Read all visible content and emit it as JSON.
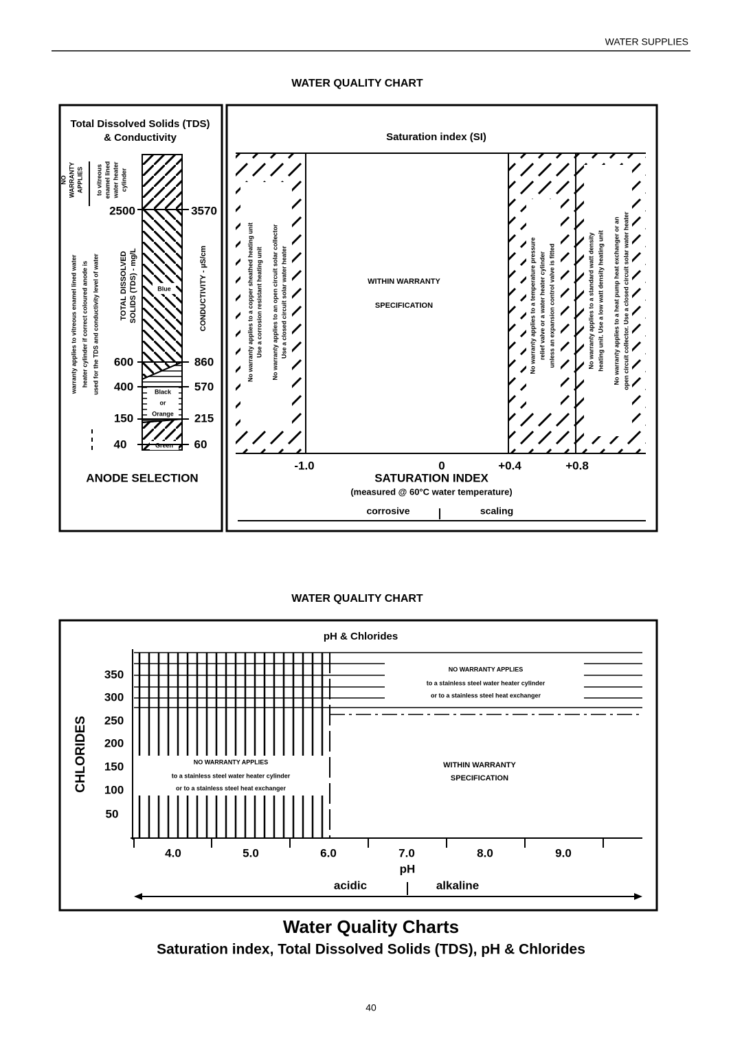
{
  "header": {
    "section": "WATER SUPPLIES"
  },
  "chart1": {
    "title": "WATER QUALITY CHART",
    "tds": {
      "title": "Total Dissolved Solids (TDS)",
      "subtitle": "& Conductivity",
      "no_warranty": [
        "NO",
        "WARRANTY",
        "APPLIES",
        "to vitreous",
        "enamel lined",
        "water heater",
        "cylinder"
      ],
      "warranty": [
        "warranty applies to vitreous enamel lined water",
        "heater cylinder if correct coloured anode is",
        "used for the TDS and conductivity level of water"
      ],
      "tds_axis": [
        "TOTAL DISSOLVED",
        "SOLIDS (TDS) - mg/L"
      ],
      "cond_axis": "CONDUCTIVITY - µS/cm",
      "tds_ticks": [
        "2500",
        "600",
        "400",
        "150",
        "40"
      ],
      "cond_ticks": [
        "3570",
        "860",
        "570",
        "215",
        "60"
      ],
      "anodes": {
        "blue": "Blue",
        "black_orange": [
          "Black",
          "or",
          "Orange"
        ],
        "green": "Green"
      },
      "footer": "ANODE SELECTION"
    },
    "si": {
      "title": "Saturation index (SI)",
      "corrosive_note": [
        "No warranty applies to a copper sheathed heating unit",
        "Use a corrosion resistant heating unit",
        "No warranty applies to an open circuit solar collector",
        "Use a closed circuit solar water heater"
      ],
      "within": [
        "WITHIN WARRANTY",
        "SPECIFICATION"
      ],
      "scaling_note_1": [
        "No warranty applies to a temperature pressure",
        "relief valve or a water heater cylinder",
        "unless an expansion control valve is fitted"
      ],
      "scaling_note_2": [
        "No warranty applies to a standard watt density",
        "heating unit. Use a low watt density heating unit",
        "No warranty applies to a heat pump heat exchanger or an",
        "open circuit collector. Use a closed circuit solar water heater"
      ],
      "ticks": [
        "-1.0",
        "0",
        "+0.4",
        "+0.8"
      ],
      "axis_title": "SATURATION INDEX",
      "axis_note": "(measured @ 60°C water temperature)",
      "left_arrow": "corrosive",
      "right_arrow": "scaling"
    }
  },
  "chart2": {
    "title": "WATER QUALITY CHART",
    "subtitle": "pH & Chlorides",
    "no_warranty_top": [
      "NO WARRANTY APPLIES",
      "to a stainless steel water heater cylinder",
      "or to a stainless steel heat exchanger"
    ],
    "no_warranty_left": [
      "NO WARRANTY APPLIES",
      "to a stainless steel water heater cylinder",
      "or to a stainless steel heat exchanger"
    ],
    "within": [
      "WITHIN WARRANTY",
      "SPECIFICATION"
    ],
    "y_title": "CHLORIDES",
    "yticks": [
      "350",
      "300",
      "250",
      "200",
      "150",
      "100",
      "50"
    ],
    "xticks": [
      "4.0",
      "5.0",
      "6.0",
      "7.0",
      "8.0",
      "9.0"
    ],
    "x_title": "pH",
    "left_arrow": "acidic",
    "right_arrow": "alkaline"
  },
  "footer": {
    "title": "Water Quality Charts",
    "subtitle": "Saturation index, Total Dissolved Solids (TDS), pH & Chlorides",
    "page": "40"
  }
}
